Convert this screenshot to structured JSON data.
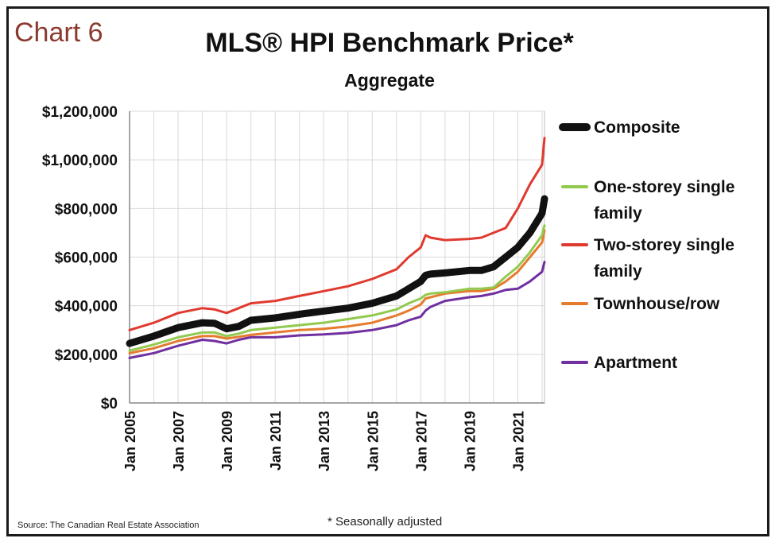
{
  "chart_label": "Chart 6",
  "source": "Source: The Canadian Real Estate Association",
  "footnote": "* Seasonally adjusted",
  "colors": {
    "composite": "#111111",
    "one_storey": "#92c94f",
    "two_storey": "#e03a2f",
    "townhouse": "#e57b2e",
    "apartment": "#7030a0"
  },
  "chart_data": {
    "type": "line",
    "title": "MLS® HPI Benchmark Price*",
    "subtitle": "Aggregate",
    "ylim": [
      0,
      1200000
    ],
    "yticks": [
      0,
      200000,
      400000,
      600000,
      800000,
      1000000,
      1200000
    ],
    "ytick_labels": [
      "$0",
      "$200,000",
      "$400,000",
      "$600,000",
      "$800,000",
      "$1,000,000",
      "$1,200,000"
    ],
    "xlim": [
      2005,
      2022.1
    ],
    "xticks": [
      2005,
      2007,
      2009,
      2011,
      2013,
      2015,
      2017,
      2019,
      2021
    ],
    "xtick_labels": [
      "Jan 2005",
      "Jan 2007",
      "Jan 2009",
      "Jan 2011",
      "Jan 2013",
      "Jan 2015",
      "Jan 2017",
      "Jan 2019",
      "Jan 2021"
    ],
    "grid": true,
    "legend_position": "right",
    "x": [
      2005,
      2006,
      2007,
      2008,
      2008.5,
      2009,
      2009.5,
      2010,
      2011,
      2012,
      2013,
      2014,
      2015,
      2016,
      2016.5,
      2017,
      2017.2,
      2017.4,
      2018,
      2019,
      2019.5,
      2020,
      2020.5,
      2021,
      2021.5,
      2022,
      2022.1
    ],
    "series": [
      {
        "name": "Composite",
        "key": "composite",
        "width": 9,
        "values": [
          245000,
          275000,
          310000,
          330000,
          328000,
          305000,
          315000,
          340000,
          350000,
          365000,
          378000,
          390000,
          410000,
          440000,
          470000,
          500000,
          525000,
          530000,
          535000,
          545000,
          545000,
          560000,
          600000,
          640000,
          700000,
          780000,
          840000
        ]
      },
      {
        "name": "One-storey single family",
        "key": "one_storey",
        "width": 3,
        "values": [
          215000,
          240000,
          270000,
          290000,
          290000,
          275000,
          285000,
          300000,
          310000,
          320000,
          330000,
          345000,
          360000,
          385000,
          410000,
          430000,
          445000,
          450000,
          455000,
          470000,
          470000,
          475000,
          520000,
          560000,
          620000,
          690000,
          730000
        ]
      },
      {
        "name": "Two-storey single family",
        "key": "two_storey",
        "width": 3,
        "values": [
          300000,
          330000,
          370000,
          390000,
          385000,
          370000,
          390000,
          410000,
          420000,
          440000,
          460000,
          480000,
          510000,
          550000,
          600000,
          640000,
          690000,
          680000,
          670000,
          675000,
          680000,
          700000,
          720000,
          800000,
          900000,
          980000,
          1090000
        ]
      },
      {
        "name": "Townhouse/row",
        "key": "townhouse",
        "width": 3,
        "values": [
          205000,
          225000,
          255000,
          275000,
          275000,
          265000,
          272000,
          280000,
          290000,
          300000,
          305000,
          315000,
          330000,
          360000,
          380000,
          405000,
          430000,
          435000,
          450000,
          460000,
          460000,
          470000,
          500000,
          540000,
          600000,
          660000,
          710000
        ]
      },
      {
        "name": "Apartment",
        "key": "apartment",
        "width": 3,
        "values": [
          185000,
          205000,
          235000,
          260000,
          255000,
          245000,
          260000,
          270000,
          270000,
          278000,
          282000,
          288000,
          300000,
          320000,
          340000,
          355000,
          380000,
          395000,
          420000,
          435000,
          440000,
          450000,
          465000,
          470000,
          500000,
          540000,
          580000
        ]
      }
    ],
    "legend": [
      {
        "key": "composite",
        "lines": [
          "Composite"
        ]
      },
      {
        "key": "one_storey",
        "lines": [
          "One-storey single",
          "family"
        ]
      },
      {
        "key": "two_storey",
        "lines": [
          "Two-storey single",
          "family"
        ]
      },
      {
        "key": "townhouse",
        "lines": [
          "Townhouse/row"
        ]
      },
      {
        "key": "apartment",
        "lines": [
          "Apartment"
        ]
      }
    ]
  }
}
